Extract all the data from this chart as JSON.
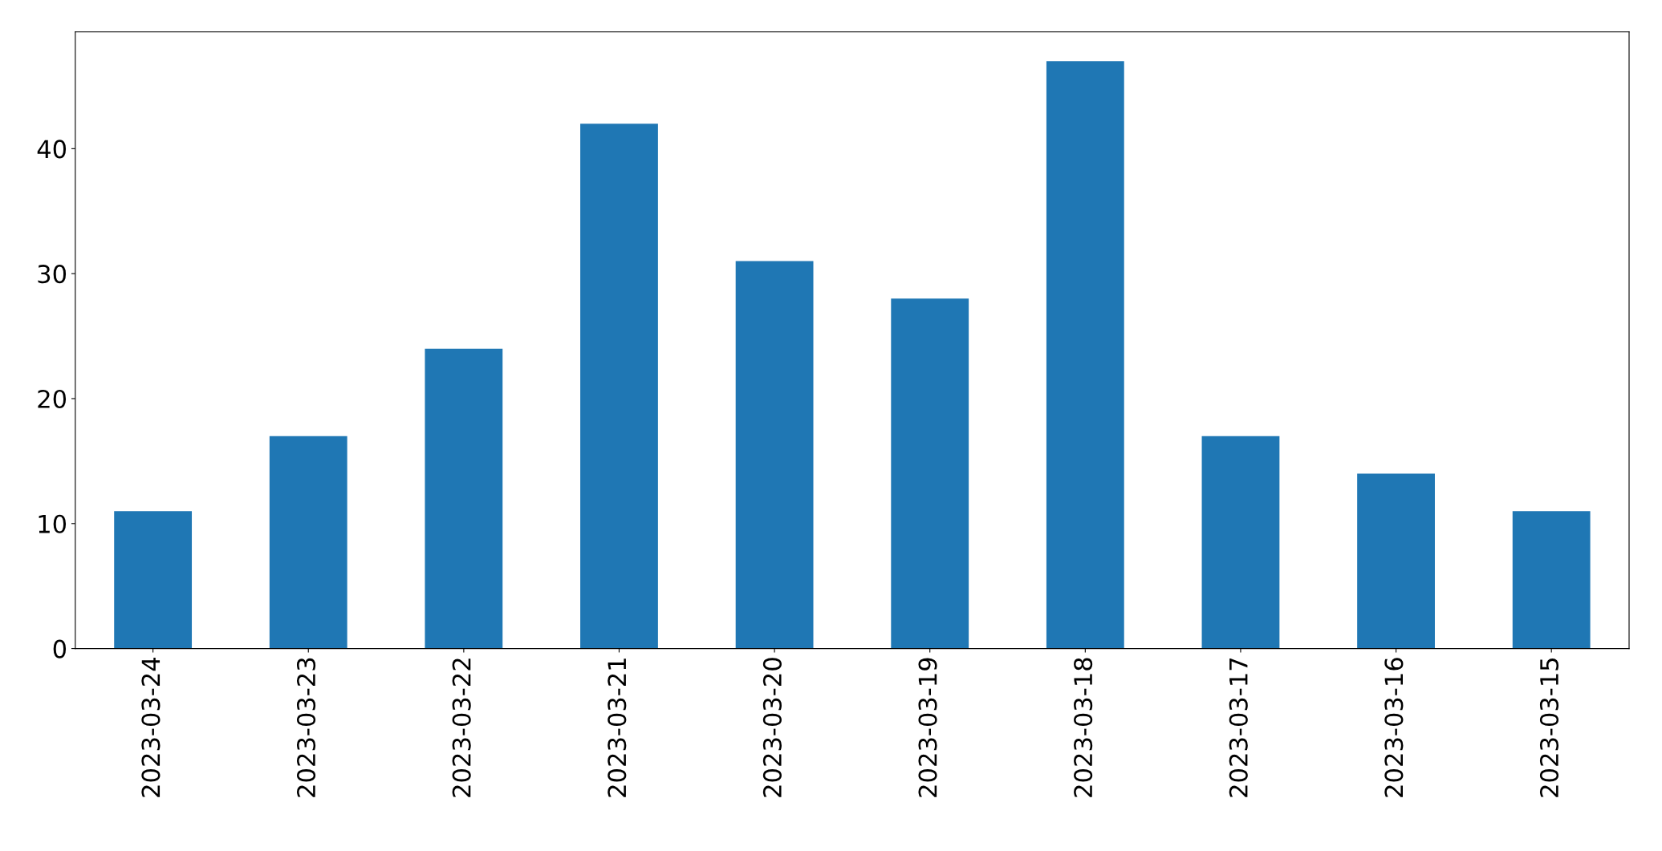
{
  "chart_data": {
    "type": "bar",
    "categories": [
      "2023-03-24",
      "2023-03-23",
      "2023-03-22",
      "2023-03-21",
      "2023-03-20",
      "2023-03-19",
      "2023-03-18",
      "2023-03-17",
      "2023-03-16",
      "2023-03-15"
    ],
    "values": [
      11,
      17,
      24,
      42,
      31,
      28,
      47,
      17,
      14,
      11
    ],
    "color": "#1f77b4",
    "ylim": [
      0,
      49.35
    ],
    "yticks": [
      0,
      10,
      20,
      30,
      40
    ],
    "grid": false,
    "legend": false
  }
}
